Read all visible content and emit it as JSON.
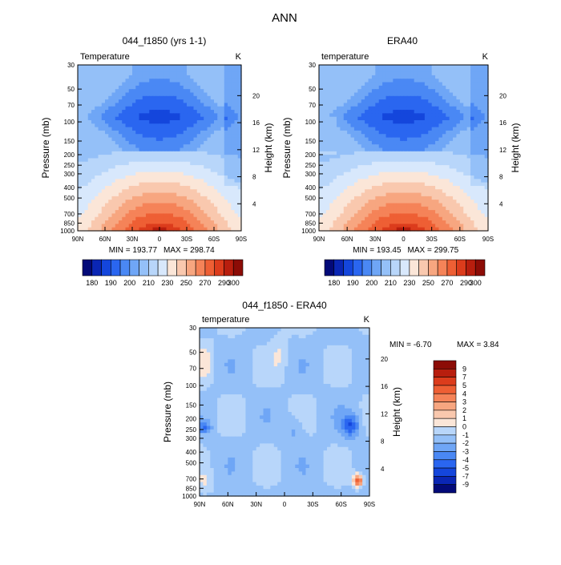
{
  "page_title": "ANN",
  "colors": {
    "frame": "#000000",
    "model_palette": [
      "#030a78",
      "#0a26b4",
      "#1446dc",
      "#2a66f0",
      "#4a88f4",
      "#6fa6f6",
      "#94c0f8",
      "#b8d6fa",
      "#d8e8fc",
      "#fbe6d8",
      "#f9c8ae",
      "#f7a680",
      "#f58358",
      "#ee5f34",
      "#dc3c1c",
      "#b81e0e",
      "#8c0c06"
    ],
    "diff_palette": [
      "#030a78",
      "#0a26b4",
      "#1446dc",
      "#2a66f0",
      "#4a88f4",
      "#6fa6f6",
      "#94c0f8",
      "#b8d6fa",
      "#d8e8fc",
      "#fbe6d8",
      "#f9c8ae",
      "#f7a680",
      "#f58358",
      "#ee5f34",
      "#dc3c1c",
      "#b81e0e",
      "#8c0c06"
    ]
  },
  "chart_data": [
    {
      "id": "model",
      "type": "heatmap",
      "title": "044_f1850 (yrs 1-1)",
      "variable_label": "Temperature",
      "units_label": "K",
      "ylabel": "Pressure (mb)",
      "y2label": "Height (km)",
      "x_ticks": [
        "90N",
        "60N",
        "30N",
        "0",
        "30S",
        "60S",
        "90S"
      ],
      "y_ticks": [
        "30",
        "50",
        "70",
        "100",
        "150",
        "200",
        "250",
        "300",
        "400",
        "500",
        "700",
        "850",
        "1000"
      ],
      "y_tick_values": [
        30,
        50,
        70,
        100,
        150,
        200,
        250,
        300,
        400,
        500,
        700,
        850,
        1000
      ],
      "y2_ticks": [
        "20",
        "16",
        "12",
        "8",
        "4"
      ],
      "y2_tick_values": [
        20,
        16,
        12,
        8,
        4
      ],
      "xlim": [
        90,
        -90
      ],
      "ylim": [
        30,
        1000
      ],
      "min_label": "MIN = 193.77",
      "max_label": "MAX = 298.74",
      "min": 193.77,
      "max": 298.74,
      "colorbar_labels": [
        "180",
        "190",
        "200",
        "210",
        "230",
        "250",
        "270",
        "290",
        "300"
      ],
      "colorbar_levels": [
        180,
        185,
        190,
        195,
        200,
        205,
        210,
        220,
        230,
        240,
        250,
        260,
        270,
        280,
        290,
        295,
        300
      ]
    },
    {
      "id": "obs",
      "type": "heatmap",
      "title": "ERA40",
      "variable_label": "temperature",
      "units_label": "K",
      "ylabel": "Pressure (mb)",
      "y2label": "Height (km)",
      "x_ticks": [
        "90N",
        "60N",
        "30N",
        "0",
        "30S",
        "60S",
        "90S"
      ],
      "y_ticks": [
        "30",
        "50",
        "70",
        "100",
        "150",
        "200",
        "250",
        "300",
        "400",
        "500",
        "700",
        "850",
        "1000"
      ],
      "y_tick_values": [
        30,
        50,
        70,
        100,
        150,
        200,
        250,
        300,
        400,
        500,
        700,
        850,
        1000
      ],
      "y2_ticks": [
        "20",
        "16",
        "12",
        "8",
        "4"
      ],
      "y2_tick_values": [
        20,
        16,
        12,
        8,
        4
      ],
      "xlim": [
        90,
        -90
      ],
      "ylim": [
        30,
        1000
      ],
      "min_label": "MIN = 193.45",
      "max_label": "MAX = 299.75",
      "min": 193.45,
      "max": 299.75,
      "colorbar_labels": [
        "180",
        "190",
        "200",
        "210",
        "230",
        "250",
        "270",
        "290",
        "300"
      ],
      "colorbar_levels": [
        180,
        185,
        190,
        195,
        200,
        205,
        210,
        220,
        230,
        240,
        250,
        260,
        270,
        280,
        290,
        295,
        300
      ]
    },
    {
      "id": "diff",
      "type": "heatmap",
      "title": "044_f1850 - ERA40",
      "variable_label": "temperature",
      "units_label": "K",
      "ylabel": "Pressure (mb)",
      "y2label": "Height (km)",
      "x_ticks": [
        "90N",
        "60N",
        "30N",
        "0",
        "30S",
        "60S",
        "90S"
      ],
      "y_ticks": [
        "30",
        "50",
        "70",
        "100",
        "150",
        "200",
        "250",
        "300",
        "400",
        "500",
        "700",
        "850",
        "1000"
      ],
      "y_tick_values": [
        30,
        50,
        70,
        100,
        150,
        200,
        250,
        300,
        400,
        500,
        700,
        850,
        1000
      ],
      "y2_ticks": [
        "20",
        "16",
        "12",
        "8",
        "4"
      ],
      "y2_tick_values": [
        20,
        16,
        12,
        8,
        4
      ],
      "xlim": [
        90,
        -90
      ],
      "ylim": [
        30,
        1000
      ],
      "min_label": "MIN = -6.70",
      "max_label": "MAX = 3.84",
      "min": -6.7,
      "max": 3.84,
      "colorbar_labels": [
        "9",
        "7",
        "5",
        "4",
        "3",
        "2",
        "1",
        "0",
        "-1",
        "-2",
        "-3",
        "-4",
        "-5",
        "-7",
        "-9"
      ],
      "colorbar_levels": [
        -9,
        -7,
        -5,
        -4,
        -3,
        -2,
        -1,
        0,
        1,
        2,
        3,
        4,
        5,
        7,
        9
      ]
    }
  ]
}
